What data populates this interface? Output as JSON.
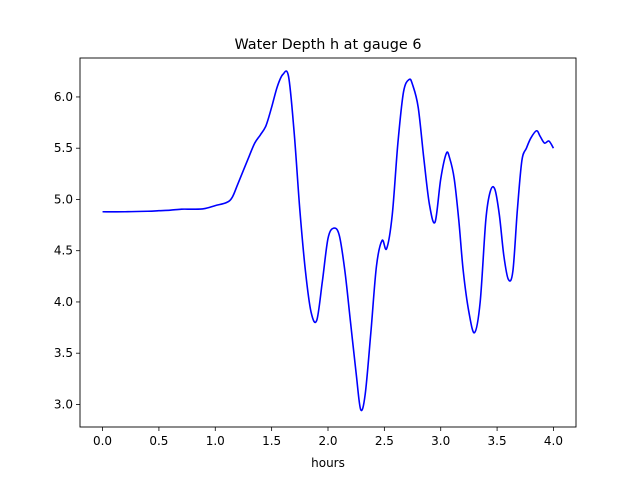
{
  "chart_data": {
    "type": "line",
    "title": "Water Depth h at gauge 6",
    "xlabel": "hours",
    "ylabel": "",
    "xlim": [
      -0.2,
      4.2
    ],
    "ylim": [
      2.78,
      6.38
    ],
    "xticks": [
      0.0,
      0.5,
      1.0,
      1.5,
      2.0,
      2.5,
      3.0,
      3.5,
      4.0
    ],
    "xtick_labels": [
      "0.0",
      "0.5",
      "1.0",
      "1.5",
      "2.0",
      "2.5",
      "3.0",
      "3.5",
      "4.0"
    ],
    "yticks": [
      3.0,
      3.5,
      4.0,
      4.5,
      5.0,
      5.5,
      6.0
    ],
    "ytick_labels": [
      "3.0",
      "3.5",
      "4.0",
      "4.5",
      "5.0",
      "5.5",
      "6.0"
    ],
    "grid": false,
    "series": [
      {
        "color": "#0000ff",
        "x": [
          0.0,
          0.2,
          0.4,
          0.5,
          0.6,
          0.7,
          0.8,
          0.9,
          1.0,
          1.1,
          1.15,
          1.2,
          1.3,
          1.35,
          1.4,
          1.45,
          1.5,
          1.55,
          1.6,
          1.65,
          1.7,
          1.75,
          1.8,
          1.85,
          1.9,
          1.95,
          2.0,
          2.05,
          2.1,
          2.15,
          2.2,
          2.25,
          2.29,
          2.33,
          2.38,
          2.43,
          2.48,
          2.52,
          2.57,
          2.62,
          2.67,
          2.72,
          2.75,
          2.8,
          2.85,
          2.9,
          2.95,
          3.0,
          3.05,
          3.08,
          3.12,
          3.16,
          3.2,
          3.25,
          3.3,
          3.35,
          3.4,
          3.44,
          3.48,
          3.52,
          3.56,
          3.6,
          3.64,
          3.68,
          3.72,
          3.76,
          3.8,
          3.85,
          3.88,
          3.92,
          3.96,
          4.0
        ],
        "y": [
          4.88,
          4.88,
          4.885,
          4.89,
          4.895,
          4.905,
          4.905,
          4.91,
          4.94,
          4.97,
          5.02,
          5.15,
          5.42,
          5.55,
          5.63,
          5.72,
          5.9,
          6.1,
          6.22,
          6.2,
          5.65,
          4.9,
          4.3,
          3.9,
          3.82,
          4.2,
          4.62,
          4.72,
          4.65,
          4.3,
          3.8,
          3.3,
          2.95,
          3.1,
          3.7,
          4.35,
          4.6,
          4.52,
          4.85,
          5.55,
          6.05,
          6.17,
          6.12,
          5.9,
          5.4,
          4.95,
          4.78,
          5.2,
          5.45,
          5.4,
          5.2,
          4.8,
          4.3,
          3.9,
          3.7,
          4.0,
          4.8,
          5.08,
          5.1,
          4.85,
          4.45,
          4.22,
          4.3,
          4.9,
          5.38,
          5.5,
          5.6,
          5.67,
          5.62,
          5.55,
          5.57,
          5.5
        ]
      }
    ]
  }
}
